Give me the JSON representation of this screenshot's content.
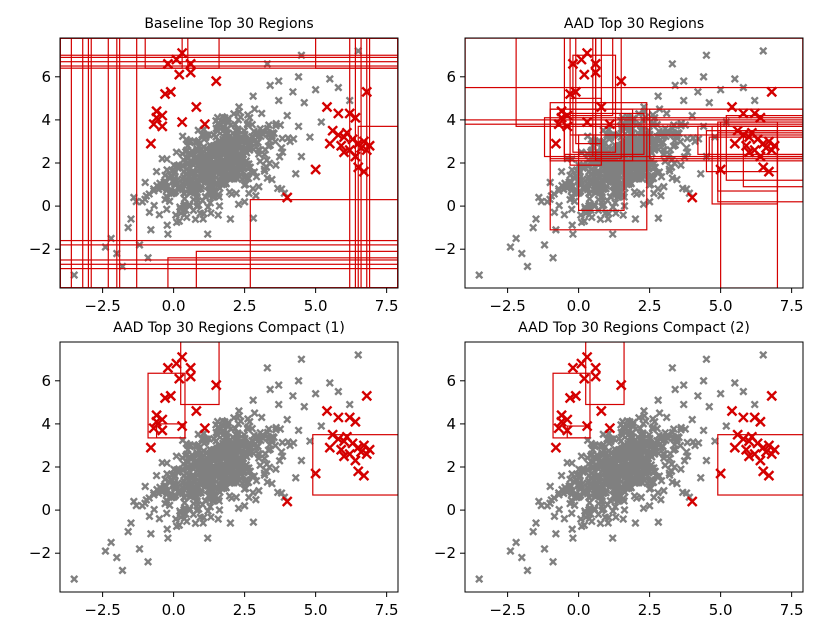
{
  "colors": {
    "nominal": "#808080",
    "anomaly": "#d40000",
    "region": "#d40000"
  },
  "chart_data": [
    {
      "type": "scatter",
      "title": "Baseline Top 30 Regions",
      "xlim": [
        -4.0,
        7.9
      ],
      "ylim": [
        -3.8,
        7.8
      ],
      "xticks": [
        "-2.5",
        "0.0",
        "2.5",
        "5.0",
        "7.5"
      ],
      "yticks": [
        "-2",
        "0",
        "2",
        "4",
        "6"
      ],
      "regions": [
        [
          -4.0,
          -2.3,
          -3.8,
          7.8
        ],
        [
          -4.0,
          -2.0,
          -3.8,
          7.8
        ],
        [
          -4.0,
          -1.3,
          -3.8,
          7.8
        ],
        [
          -4.0,
          -3.6,
          -3.8,
          7.8
        ],
        [
          -4.0,
          -3.2,
          -3.8,
          7.8
        ],
        [
          -4.0,
          -1.9,
          -3.8,
          7.8
        ],
        [
          -4.0,
          7.9,
          6.9,
          7.8
        ],
        [
          -4.0,
          7.9,
          6.7,
          7.8
        ],
        [
          -4.0,
          7.9,
          6.5,
          7.8
        ],
        [
          -4.0,
          7.9,
          6.4,
          7.8
        ],
        [
          -4.0,
          7.9,
          -3.8,
          -2.7
        ],
        [
          -4.0,
          7.9,
          -3.8,
          -2.5
        ],
        [
          -4.0,
          7.9,
          -3.8,
          -1.6
        ],
        [
          -4.0,
          7.9,
          -3.8,
          -1.8
        ],
        [
          6.4,
          7.9,
          -3.8,
          7.8
        ],
        [
          6.6,
          7.9,
          -3.8,
          7.8
        ],
        [
          6.8,
          7.9,
          -3.8,
          7.8
        ],
        [
          6.5,
          7.9,
          -3.8,
          3.7
        ],
        [
          2.7,
          7.9,
          -3.8,
          0.3
        ],
        [
          0.8,
          7.9,
          -3.8,
          -2.1
        ],
        [
          -0.2,
          7.9,
          -3.8,
          -2.4
        ],
        [
          0.5,
          1.6,
          6.4,
          7.8
        ],
        [
          5.0,
          7.9,
          6.4,
          7.8
        ],
        [
          -1.0,
          0.3,
          6.4,
          7.8
        ],
        [
          -4.0,
          7.9,
          -3.8,
          -2.9
        ],
        [
          6.2,
          7.9,
          -3.8,
          7.8
        ],
        [
          -2.9,
          7.9,
          -3.8,
          7.8
        ],
        [
          -4.0,
          -3.0,
          -3.8,
          7.8
        ],
        [
          -4.0,
          7.9,
          7.0,
          7.8
        ],
        [
          6.9,
          7.9,
          -3.8,
          7.8
        ]
      ]
    },
    {
      "type": "scatter",
      "title": "AAD Top 30 Regions",
      "xlim": [
        -4.0,
        7.9
      ],
      "ylim": [
        -3.8,
        7.8
      ],
      "xticks": [
        "-2.5",
        "0.0",
        "2.5",
        "5.0",
        "7.5"
      ],
      "yticks": [
        "-2",
        "0",
        "2",
        "4",
        "6"
      ],
      "regions": [
        [
          -1.2,
          7.9,
          2.3,
          4.1
        ],
        [
          -1.0,
          2.4,
          -1.1,
          4.8
        ],
        [
          -2.2,
          7.9,
          3.7,
          7.8
        ],
        [
          -1.0,
          1.9,
          2.1,
          4.5
        ],
        [
          -0.5,
          0.5,
          2.3,
          7.8
        ],
        [
          -0.3,
          0.8,
          1.9,
          5.0
        ],
        [
          -0.5,
          2.3,
          2.4,
          4.3
        ],
        [
          -0.5,
          1.6,
          2.1,
          3.8
        ],
        [
          -1.0,
          0.8,
          2.2,
          4.5
        ],
        [
          0.6,
          1.5,
          2.2,
          7.8
        ],
        [
          -0.3,
          1.2,
          4.2,
          7.8
        ],
        [
          -0.2,
          1.3,
          2.5,
          7.0
        ],
        [
          -0.1,
          0.8,
          2.9,
          7.8
        ],
        [
          2.5,
          7.9,
          2.2,
          4.5
        ],
        [
          4.7,
          7.0,
          0.1,
          3.7
        ],
        [
          5.2,
          7.9,
          1.2,
          4.2
        ],
        [
          4.9,
          7.9,
          2.3,
          3.9
        ],
        [
          4.5,
          7.0,
          1.6,
          3.5
        ],
        [
          0.0,
          1.6,
          -0.2,
          3.3
        ],
        [
          4.2,
          7.9,
          2.4,
          3.7
        ],
        [
          5.0,
          7.0,
          -3.8,
          3.9
        ],
        [
          4.9,
          7.0,
          0.7,
          3.4
        ],
        [
          5.8,
          7.9,
          0.9,
          3.4
        ],
        [
          4.6,
          7.9,
          2.3,
          3.2
        ],
        [
          -4.0,
          7.9,
          4.0,
          7.8
        ],
        [
          -4.0,
          7.9,
          3.8,
          7.8
        ],
        [
          -0.3,
          7.9,
          3.3,
          4.5
        ],
        [
          4.9,
          7.9,
          0.2,
          3.5
        ],
        [
          0.6,
          7.9,
          2.1,
          7.8
        ],
        [
          -4.0,
          7.9,
          5.5,
          7.8
        ]
      ]
    },
    {
      "type": "scatter",
      "title": "AAD Top 30 Regions Compact (1)",
      "xlim": [
        -4.0,
        7.9
      ],
      "ylim": [
        -3.8,
        7.8
      ],
      "xticks": [
        "-2.5",
        "0.0",
        "2.5",
        "5.0",
        "7.5"
      ],
      "yticks": [
        "-2",
        "0",
        "2",
        "4",
        "6"
      ],
      "regions": [
        [
          -0.9,
          0.4,
          3.35,
          6.35
        ],
        [
          0.25,
          1.6,
          4.9,
          7.8
        ],
        [
          4.9,
          7.9,
          0.7,
          3.5
        ],
        [
          -0.6,
          0.4,
          3.35,
          4.0
        ]
      ]
    },
    {
      "type": "scatter",
      "title": "AAD Top 30 Regions Compact (2)",
      "xlim": [
        -4.0,
        7.9
      ],
      "ylim": [
        -3.8,
        7.8
      ],
      "xticks": [
        "-2.5",
        "0.0",
        "2.5",
        "5.0",
        "7.5"
      ],
      "yticks": [
        "-2",
        "0",
        "2",
        "4",
        "6"
      ],
      "regions": [
        [
          -0.9,
          0.4,
          3.35,
          6.35
        ],
        [
          0.25,
          1.6,
          4.9,
          7.8
        ],
        [
          4.9,
          7.9,
          0.7,
          3.5
        ],
        [
          -0.4,
          0.4,
          3.35,
          3.9
        ]
      ]
    }
  ],
  "points": {
    "anomalies": [
      [
        0.3,
        7.1
      ],
      [
        0.1,
        6.8
      ],
      [
        0.6,
        6.6
      ],
      [
        -0.2,
        6.6
      ],
      [
        0.2,
        6.1
      ],
      [
        0.6,
        6.2
      ],
      [
        -0.1,
        5.3
      ],
      [
        1.5,
        5.8
      ],
      [
        0.8,
        4.6
      ],
      [
        -0.3,
        5.2
      ],
      [
        -0.6,
        4.4
      ],
      [
        -0.4,
        4.2
      ],
      [
        -0.7,
        3.8
      ],
      [
        -0.4,
        3.7
      ],
      [
        -0.6,
        4.1
      ],
      [
        -0.8,
        2.9
      ],
      [
        0.3,
        3.9
      ],
      [
        1.1,
        3.8
      ],
      [
        4.0,
        0.4
      ],
      [
        5.0,
        1.7
      ],
      [
        5.4,
        4.6
      ],
      [
        5.8,
        4.3
      ],
      [
        6.2,
        4.3
      ],
      [
        6.4,
        4.1
      ],
      [
        6.8,
        5.3
      ],
      [
        5.6,
        3.5
      ],
      [
        5.8,
        3.3
      ],
      [
        6.0,
        3.2
      ],
      [
        6.1,
        3.4
      ],
      [
        6.3,
        3.1
      ],
      [
        6.5,
        2.9
      ],
      [
        6.7,
        3.0
      ],
      [
        6.9,
        2.8
      ],
      [
        5.5,
        2.9
      ],
      [
        5.9,
        2.8
      ],
      [
        6.2,
        2.6
      ],
      [
        6.6,
        2.7
      ],
      [
        6.8,
        2.6
      ],
      [
        6.4,
        2.3
      ],
      [
        6.5,
        1.8
      ],
      [
        6.7,
        1.6
      ],
      [
        6.0,
        2.5
      ]
    ],
    "nominal": [
      [
        -3.5,
        -3.2
      ],
      [
        -2.4,
        -1.9
      ],
      [
        -2.2,
        -1.5
      ],
      [
        -2.0,
        -2.2
      ],
      [
        -1.8,
        -2.8
      ],
      [
        -1.6,
        -1.0
      ],
      [
        -1.5,
        -0.6
      ],
      [
        -1.4,
        0.4
      ],
      [
        -1.2,
        -1.8
      ],
      [
        -1.1,
        0.2
      ],
      [
        -1.0,
        1.1
      ],
      [
        -0.9,
        -2.4
      ],
      [
        -0.8,
        -1.1
      ],
      [
        -0.7,
        0.8
      ],
      [
        -0.6,
        1.6
      ],
      [
        -0.5,
        -0.4
      ],
      [
        -0.4,
        2.2
      ],
      [
        -0.3,
        0.3
      ],
      [
        -0.2,
        -1.3
      ],
      [
        -0.1,
        1.4
      ],
      [
        0.0,
        0.6
      ],
      [
        0.1,
        2.5
      ],
      [
        0.2,
        -0.7
      ],
      [
        0.3,
        1.9
      ],
      [
        0.4,
        0.1
      ],
      [
        0.5,
        3.0
      ],
      [
        0.6,
        1.2
      ],
      [
        0.7,
        -0.2
      ],
      [
        0.8,
        2.3
      ],
      [
        0.9,
        0.8
      ],
      [
        1.0,
        3.3
      ],
      [
        1.1,
        1.7
      ],
      [
        1.2,
        -1.3
      ],
      [
        1.3,
        2.8
      ],
      [
        1.4,
        0.5
      ],
      [
        1.5,
        3.6
      ],
      [
        1.6,
        2.0
      ],
      [
        1.7,
        1.0
      ],
      [
        1.8,
        4.1
      ],
      [
        1.9,
        2.6
      ],
      [
        2.0,
        -0.6
      ],
      [
        2.1,
        3.1
      ],
      [
        2.2,
        1.4
      ],
      [
        2.3,
        4.6
      ],
      [
        2.4,
        2.2
      ],
      [
        2.5,
        0.2
      ],
      [
        2.6,
        3.8
      ],
      [
        2.7,
        1.8
      ],
      [
        2.8,
        5.1
      ],
      [
        2.9,
        2.9
      ],
      [
        3.0,
        0.9
      ],
      [
        3.1,
        4.3
      ],
      [
        3.2,
        2.4
      ],
      [
        3.3,
        1.3
      ],
      [
        3.4,
        5.6
      ],
      [
        3.5,
        3.4
      ],
      [
        3.6,
        1.9
      ],
      [
        3.7,
        4.9
      ],
      [
        3.8,
        2.7
      ],
      [
        3.9,
        0.6
      ],
      [
        4.0,
        4.2
      ],
      [
        4.1,
        3.0
      ],
      [
        4.2,
        5.3
      ],
      [
        4.3,
        1.5
      ],
      [
        4.4,
        3.7
      ],
      [
        4.5,
        2.3
      ],
      [
        4.6,
        4.8
      ],
      [
        4.8,
        3.2
      ],
      [
        5.0,
        5.4
      ],
      [
        5.2,
        3.9
      ],
      [
        5.5,
        5.9
      ],
      [
        5.8,
        5.5
      ],
      [
        6.2,
        4.9
      ],
      [
        6.5,
        7.2
      ],
      [
        4.5,
        7.0
      ],
      [
        3.3,
        6.6
      ],
      [
        4.4,
        6.0
      ],
      [
        3.7,
        5.8
      ]
    ]
  }
}
